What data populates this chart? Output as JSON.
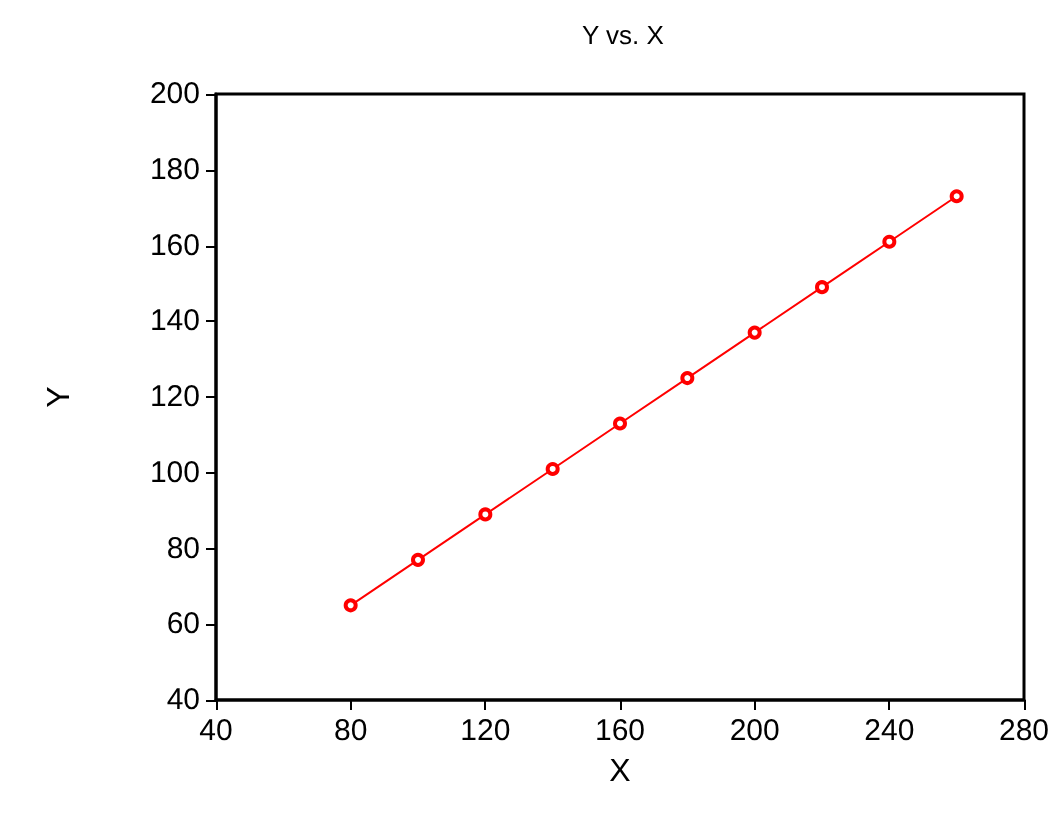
{
  "chart_data": {
    "type": "line",
    "title": "Y vs. X",
    "xlabel": "X",
    "ylabel": "Y",
    "x": [
      80,
      100,
      120,
      140,
      160,
      180,
      200,
      220,
      240,
      260
    ],
    "series": [
      {
        "color": "#ff0000",
        "values": [
          65,
          77,
          89,
          101,
          113,
          125,
          137,
          149,
          161,
          173
        ]
      }
    ],
    "xlim": [
      40,
      280
    ],
    "xticks": [
      40,
      80,
      120,
      160,
      200,
      240,
      280
    ],
    "ylim": [
      40,
      200
    ],
    "yticks": [
      40,
      60,
      80,
      100,
      120,
      140,
      160,
      180,
      200
    ],
    "grid": false,
    "marker": "circle",
    "line_style": "solid"
  }
}
